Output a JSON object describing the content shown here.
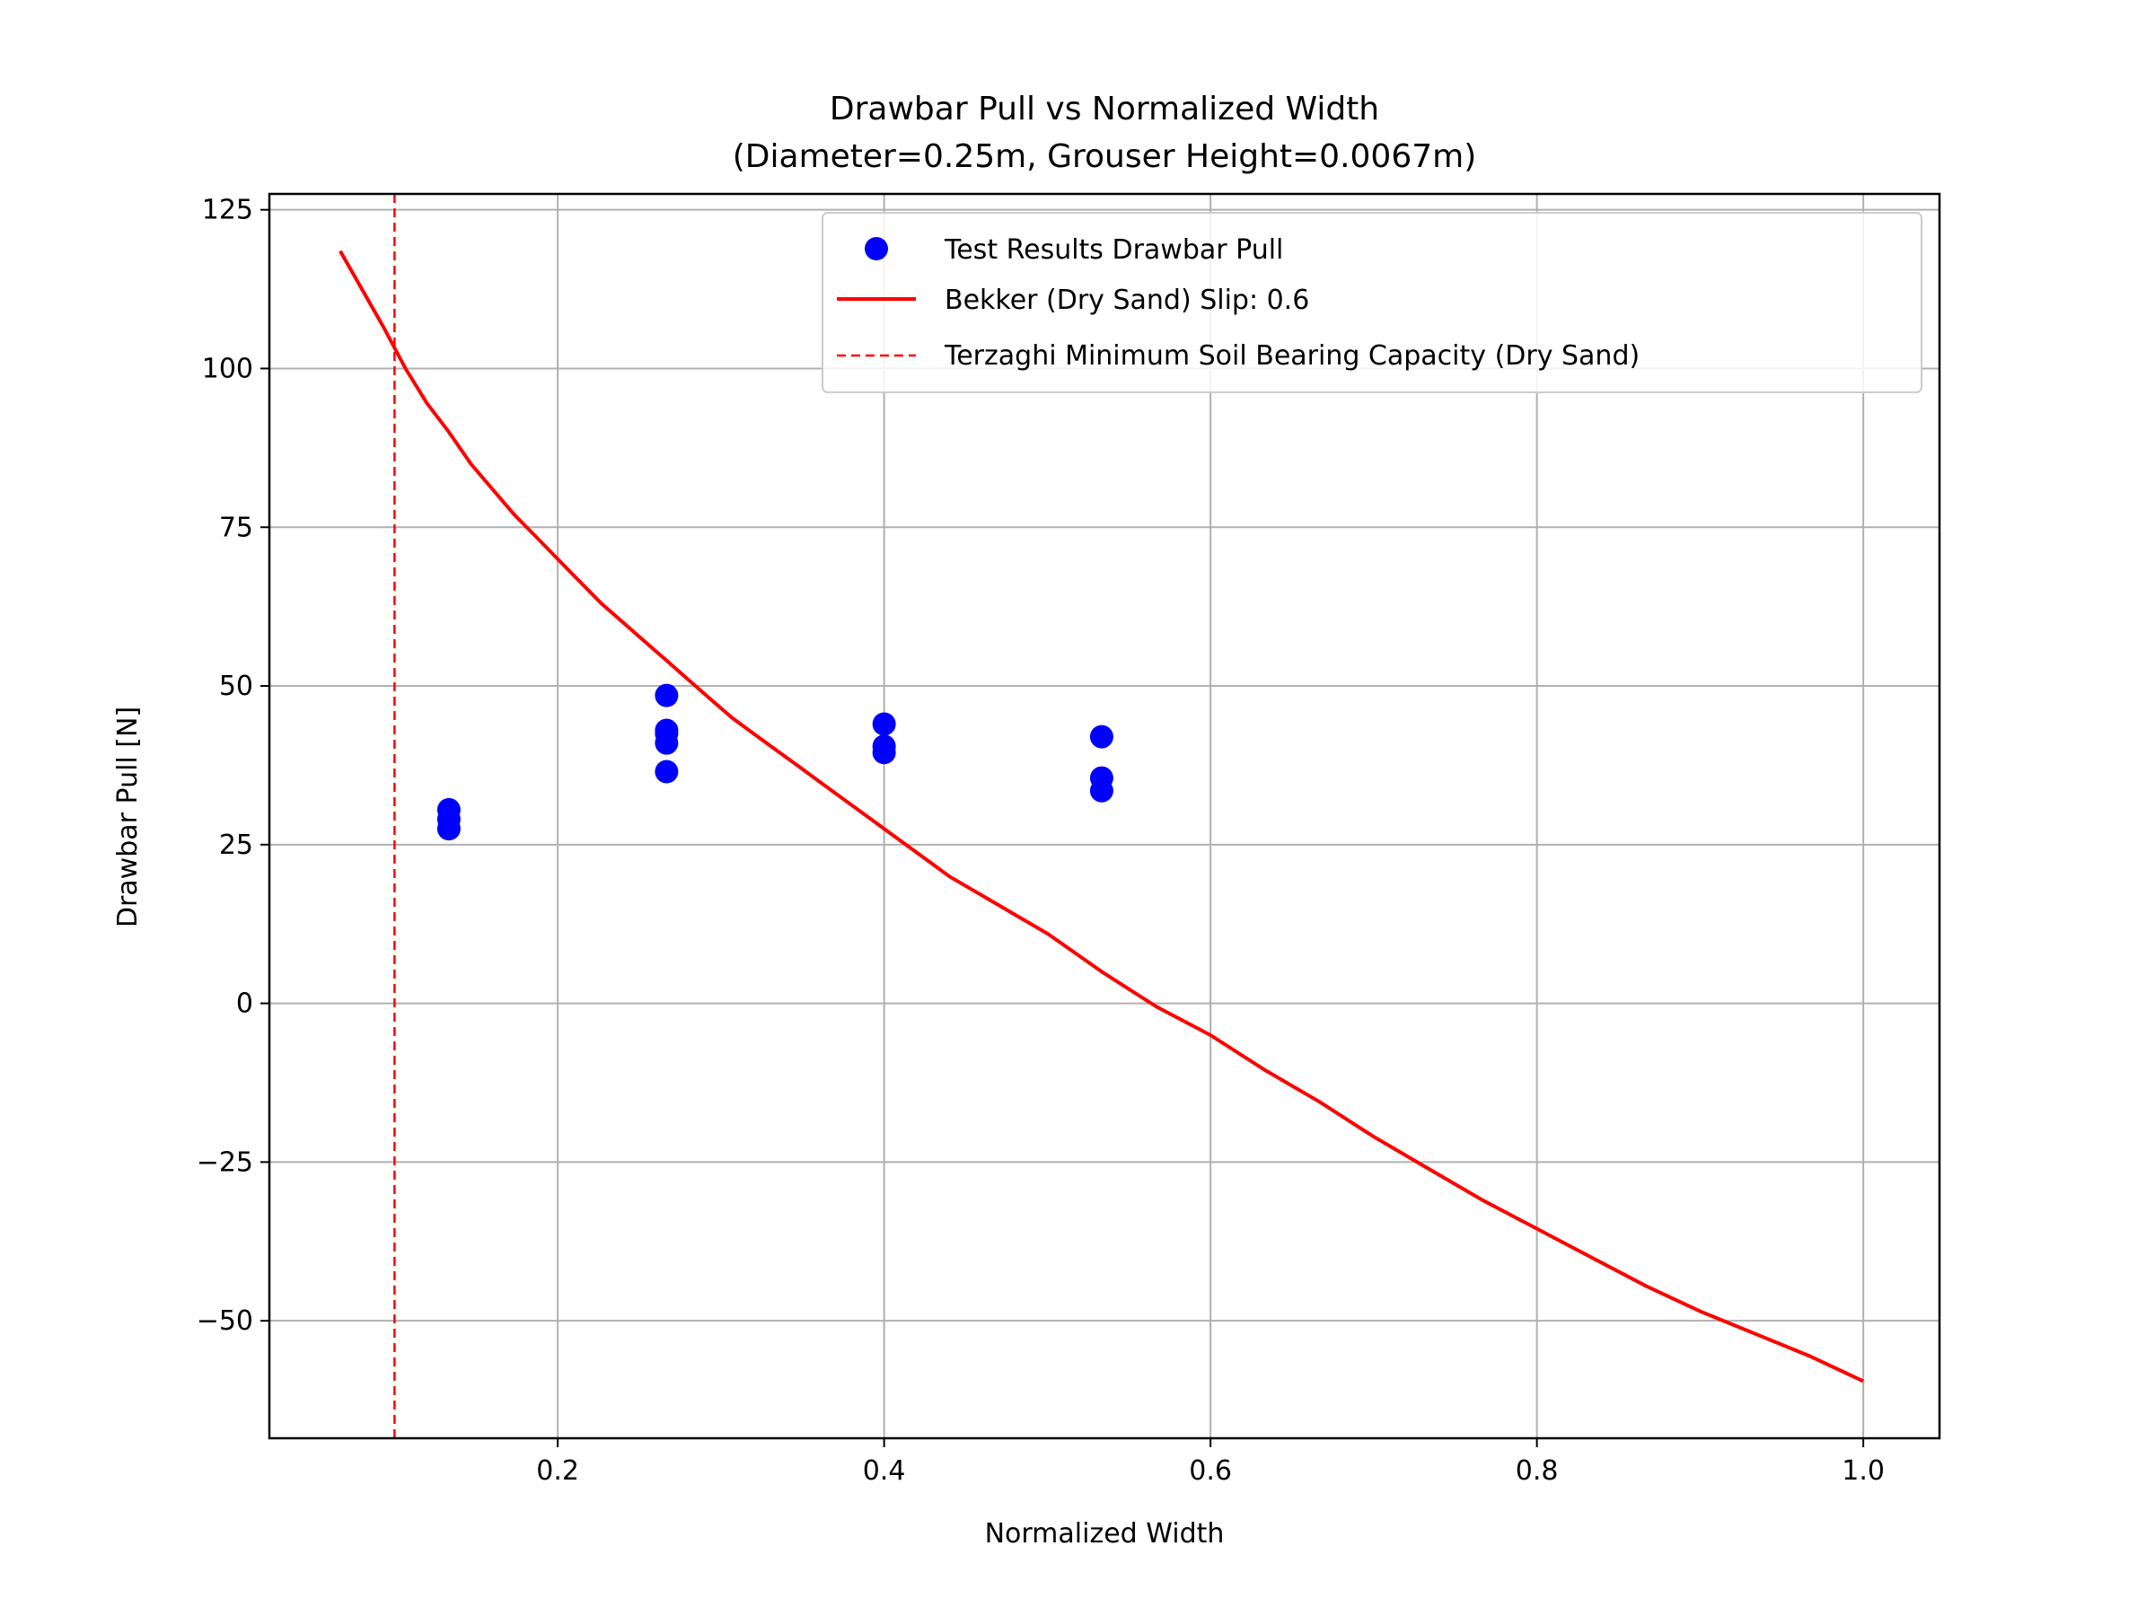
{
  "chart_data": {
    "type": "scatter",
    "title_lines": [
      "Drawbar Pull vs Normalized Width",
      "(Diameter=0.25m, Grouser Height=0.0067m)"
    ],
    "xlabel": "Normalized Width",
    "ylabel": "Drawbar Pull [N]",
    "xlim": [
      0.0233,
      1.0467
    ],
    "ylim": [
      -68.5,
      127.5
    ],
    "xticks": [
      0.2,
      0.4,
      0.6,
      0.8,
      1.0
    ],
    "xtick_labels": [
      "0.2",
      "0.4",
      "0.6",
      "0.8",
      "1.0"
    ],
    "yticks": [
      125,
      100,
      75,
      50,
      25,
      0,
      -25,
      -50
    ],
    "ytick_labels": [
      "125",
      "100",
      "75",
      "50",
      "25",
      "0",
      "−25",
      "−50"
    ],
    "grid": true,
    "legend_position": "top-right",
    "colors": {
      "scatter": "#0000ff",
      "bekker": "#ff0000",
      "terzaghi": "#ff0000",
      "grid": "#b0b0b0"
    },
    "series": [
      {
        "name": "Test Results Drawbar Pull",
        "kind": "scatter",
        "x": [
          0.1333,
          0.1333,
          0.1333,
          0.2667,
          0.2667,
          0.2667,
          0.2667,
          0.2667,
          0.4,
          0.4,
          0.4,
          0.5333,
          0.5333,
          0.5333
        ],
        "y": [
          30.5,
          29.0,
          27.5,
          48.5,
          43.0,
          41.0,
          36.5,
          42.5,
          44.0,
          40.5,
          39.5,
          42.0,
          35.5,
          33.5
        ]
      },
      {
        "name": "Bekker (Dry Sand) Slip: 0.6",
        "kind": "line",
        "x": [
          0.0667,
          0.08,
          0.0933,
          0.1067,
          0.12,
          0.1333,
          0.1467,
          0.16,
          0.1733,
          0.1867,
          0.2,
          0.2133,
          0.2267,
          0.24,
          0.2533,
          0.2667,
          0.28,
          0.2933,
          0.3067,
          0.32,
          0.3333,
          0.3467,
          0.36,
          0.3733,
          0.3867,
          0.4,
          0.4133,
          0.4267,
          0.44,
          0.4533,
          0.4667,
          0.48,
          0.5,
          0.5333,
          0.5667,
          0.6,
          0.6333,
          0.6667,
          0.7,
          0.7333,
          0.7667,
          0.8,
          0.8333,
          0.8667,
          0.9,
          0.9333,
          0.9667,
          1.0
        ],
        "y": [
          118.5,
          112.5,
          106.5,
          100.0,
          94.5,
          90.0,
          85.0,
          81.0,
          77.0,
          73.5,
          70.0,
          66.5,
          63.0,
          60.0,
          57.0,
          54.0,
          51.0,
          48.0,
          45.0,
          42.5,
          40.0,
          37.5,
          35.0,
          32.5,
          30.0,
          27.5,
          25.0,
          22.5,
          20.0,
          18.0,
          16.0,
          14.0,
          11.0,
          5.0,
          -0.5,
          -5.0,
          -10.5,
          -15.5,
          -21.0,
          -26.0,
          -31.0,
          -35.5,
          -40.0,
          -44.5,
          -48.5,
          -52.0,
          -55.5,
          -59.5
        ]
      },
      {
        "name": "Terzaghi Minimum Soil Bearing Capacity (Dry Sand)",
        "kind": "vline",
        "x": 0.1
      }
    ]
  }
}
